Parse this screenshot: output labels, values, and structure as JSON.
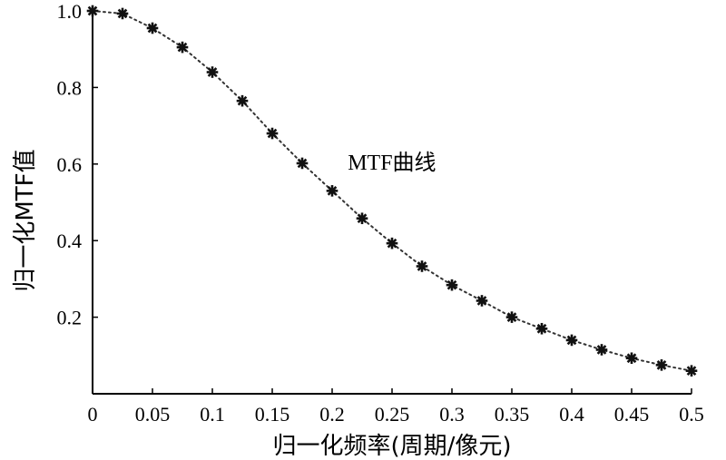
{
  "chart_data": {
    "type": "line",
    "title": "",
    "xlabel": "归一化频率(周期/像元)",
    "ylabel": "归一化MTF值",
    "xlim": [
      0,
      0.5
    ],
    "ylim": [
      0,
      1.0
    ],
    "x_ticks": [
      {
        "value": 0,
        "label": "0"
      },
      {
        "value": 0.05,
        "label": "0.05"
      },
      {
        "value": 0.1,
        "label": "0.1"
      },
      {
        "value": 0.15,
        "label": "0.15"
      },
      {
        "value": 0.2,
        "label": "0.2"
      },
      {
        "value": 0.25,
        "label": "0.25"
      },
      {
        "value": 0.3,
        "label": "0.3"
      },
      {
        "value": 0.35,
        "label": "0.35"
      },
      {
        "value": 0.4,
        "label": "0.4"
      },
      {
        "value": 0.45,
        "label": "0.45"
      },
      {
        "value": 0.5,
        "label": "0.5"
      }
    ],
    "y_ticks": [
      {
        "value": 0.2,
        "label": "0.2"
      },
      {
        "value": 0.4,
        "label": "0.4"
      },
      {
        "value": 0.6,
        "label": "0.6"
      },
      {
        "value": 0.8,
        "label": "0.8"
      },
      {
        "value": 1.0,
        "label": "1.0"
      }
    ],
    "grid": false,
    "legend": "none",
    "series": [
      {
        "style": "dotted line with asterisk markers",
        "color": "#111111",
        "x": [
          0,
          0.025,
          0.05,
          0.075,
          0.1,
          0.125,
          0.15,
          0.175,
          0.2,
          0.225,
          0.25,
          0.275,
          0.3,
          0.325,
          0.35,
          0.375,
          0.4,
          0.425,
          0.45,
          0.475,
          0.5
        ],
        "y": [
          1.0,
          0.993,
          0.955,
          0.905,
          0.84,
          0.765,
          0.68,
          0.602,
          0.53,
          0.458,
          0.393,
          0.333,
          0.284,
          0.243,
          0.2,
          0.17,
          0.14,
          0.115,
          0.093,
          0.075,
          0.06
        ]
      }
    ],
    "annotations": [
      {
        "text": "MTF曲线",
        "x": 0.21,
        "y": 0.585
      }
    ]
  }
}
